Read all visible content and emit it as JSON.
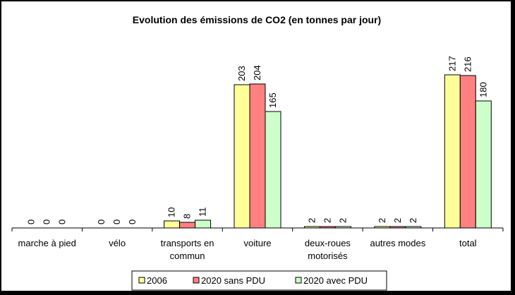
{
  "chart_data": {
    "type": "bar",
    "title": "Evolution des émissions de CO2 (en tonnes par jour)",
    "categories": [
      "marche à pied",
      "vélo",
      "transports en commun",
      "voiture",
      "deux-roues motorisés",
      "autres modes",
      "total"
    ],
    "category_lines": [
      [
        "marche à pied"
      ],
      [
        "vélo"
      ],
      [
        "transports en",
        "commun"
      ],
      [
        "voiture"
      ],
      [
        "deux-roues",
        "motorisés"
      ],
      [
        "autres modes"
      ],
      [
        "total"
      ]
    ],
    "series": [
      {
        "name": "2006",
        "color": "#ffff99",
        "values": [
          0,
          0,
          10,
          203,
          2,
          2,
          217
        ]
      },
      {
        "name": "2020 sans PDU",
        "color": "#ff8080",
        "values": [
          0,
          0,
          8,
          204,
          2,
          2,
          216
        ]
      },
      {
        "name": "2020 avec PDU",
        "color": "#ccffcc",
        "values": [
          0,
          0,
          11,
          165,
          2,
          2,
          180
        ]
      }
    ],
    "ylim": [
      0,
      250
    ],
    "y_axis_visible": false,
    "grid": false,
    "data_labels": true,
    "legend": "bottom"
  }
}
